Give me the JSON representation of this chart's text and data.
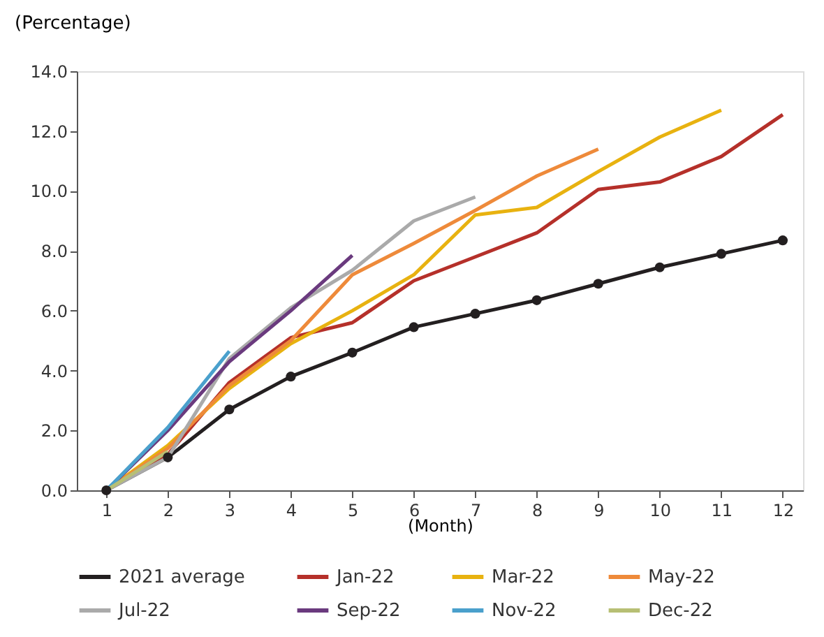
{
  "chart_data": {
    "type": "line",
    "xlabel": "(Month)",
    "ylabel": "(Percentage)",
    "x": [
      1,
      2,
      3,
      4,
      5,
      6,
      7,
      8,
      9,
      10,
      11,
      12
    ],
    "xlim": [
      0.52,
      12.33
    ],
    "xticks": [
      1,
      2,
      3,
      4,
      5,
      6,
      7,
      8,
      9,
      10,
      11,
      12
    ],
    "ylim": [
      0,
      14
    ],
    "yticks": [
      {
        "value": 0,
        "label": "0.0"
      },
      {
        "value": 2,
        "label": "2.0"
      },
      {
        "value": 4,
        "label": "4.0"
      },
      {
        "value": 6,
        "label": "6.0"
      },
      {
        "value": 8,
        "label": "8.0"
      },
      {
        "value": 10,
        "label": "10.0"
      },
      {
        "value": 12,
        "label": "12.0"
      },
      {
        "value": 14,
        "label": "14.0"
      }
    ],
    "grid": false,
    "legend": "bottom",
    "line_style": "solid",
    "series": [
      {
        "name": "2021 average",
        "color": "#231f20",
        "marker": "circle",
        "values": [
          0,
          1.1,
          2.7,
          3.8,
          4.6,
          5.45,
          5.9,
          6.35,
          6.9,
          7.45,
          7.9,
          8.35
        ]
      },
      {
        "name": "Jan-22",
        "color": "#b5302a",
        "marker": "none",
        "values": [
          0,
          1.2,
          3.6,
          5.1,
          5.6,
          7.0,
          7.8,
          8.6,
          10.05,
          10.3,
          11.15,
          12.55
        ]
      },
      {
        "name": "Mar-22",
        "color": "#e8b210",
        "marker": "none",
        "values": [
          0,
          1.5,
          3.4,
          4.9,
          6.0,
          7.2,
          9.2,
          9.45,
          10.65,
          11.8,
          12.7,
          null
        ]
      },
      {
        "name": "May-22",
        "color": "#ee8a3a",
        "marker": "none",
        "values": [
          0,
          1.4,
          3.5,
          5.0,
          7.2,
          8.25,
          9.35,
          10.5,
          11.4,
          null,
          null,
          null
        ]
      },
      {
        "name": "Jul-22",
        "color": "#aaaaaa",
        "marker": "none",
        "values": [
          0,
          1.1,
          4.4,
          6.1,
          7.35,
          9.0,
          9.8,
          null,
          null,
          null,
          null,
          null
        ]
      },
      {
        "name": "Sep-22",
        "color": "#6a3a7e",
        "marker": "none",
        "values": [
          0,
          2.0,
          4.3,
          6.0,
          7.85,
          null,
          null,
          null,
          null,
          null,
          null,
          null
        ]
      },
      {
        "name": "Nov-22",
        "color": "#4aa0cc",
        "marker": "none",
        "values": [
          0,
          2.1,
          4.65,
          null,
          null,
          null,
          null,
          null,
          null,
          null,
          null,
          null
        ]
      },
      {
        "name": "Dec-22",
        "color": "#b7bf74",
        "marker": "none",
        "values": [
          0,
          1.3,
          null,
          null,
          null,
          null,
          null,
          null,
          null,
          null,
          null,
          null
        ]
      }
    ]
  }
}
